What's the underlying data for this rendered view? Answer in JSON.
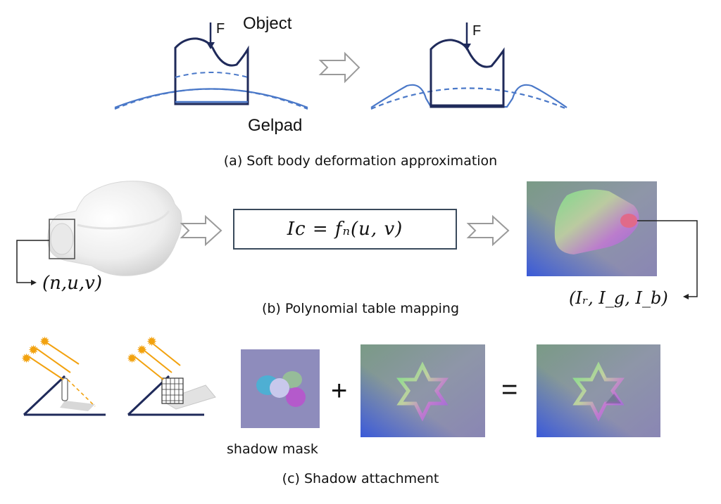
{
  "panel_a": {
    "force_label": "F",
    "object_label": "Object",
    "gelpad_label": "Gelpad",
    "caption": "(a) Soft body deformation approximation"
  },
  "panel_b": {
    "input_coords": "(n,u,v)",
    "equation": "Ic = fₙ(u, v)",
    "output_label": "(Iᵣ, I_g, I_b)",
    "caption": "(b) Polynomial table mapping"
  },
  "panel_c": {
    "plus_sign": "+",
    "equals_sign": "=",
    "shadow_mask_label": "shadow mask",
    "caption": "(c) Shadow attachment"
  },
  "colors": {
    "dark_navy": "#1f2a5a",
    "gelpad_blue": "#4a78c8",
    "arrow_gray": "#9a9a9a",
    "sun_orange": "#f2a20f"
  }
}
